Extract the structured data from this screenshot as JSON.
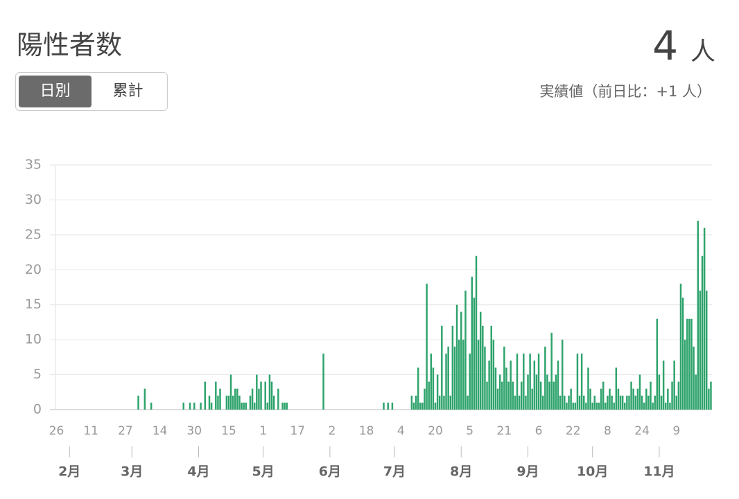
{
  "header": {
    "title": "陽性者数",
    "latest": 4,
    "unit": "人",
    "note": "実績値（前日比：+1 人）",
    "tabs": [
      "日別",
      "累計"
    ]
  },
  "chart_data": {
    "type": "bar",
    "color": "#2ea36c",
    "grid": true,
    "ylim": [
      0,
      35
    ],
    "yticks": [
      0,
      5,
      10,
      15,
      20,
      25,
      30,
      35
    ],
    "xticks": [
      {
        "value": 0,
        "label": "26"
      },
      {
        "value": 16,
        "label": "11"
      },
      {
        "value": 32,
        "label": "27"
      },
      {
        "value": 48,
        "label": "14"
      },
      {
        "value": 64,
        "label": "30"
      },
      {
        "value": 80,
        "label": "15"
      },
      {
        "value": 96,
        "label": "1"
      },
      {
        "value": 112,
        "label": "17"
      },
      {
        "value": 128,
        "label": "2"
      },
      {
        "value": 144,
        "label": "18"
      },
      {
        "value": 160,
        "label": "4"
      },
      {
        "value": 176,
        "label": "20"
      },
      {
        "value": 192,
        "label": "5"
      },
      {
        "value": 208,
        "label": "21"
      },
      {
        "value": 224,
        "label": "6"
      },
      {
        "value": 240,
        "label": "22"
      },
      {
        "value": 256,
        "label": "8"
      },
      {
        "value": 272,
        "label": "24"
      },
      {
        "value": 288,
        "label": "9"
      }
    ],
    "month_ticks": [
      {
        "value": 6,
        "label": "2月"
      },
      {
        "value": 35,
        "label": "3月"
      },
      {
        "value": 66,
        "label": "4月"
      },
      {
        "value": 96,
        "label": "5月"
      },
      {
        "value": 127,
        "label": "6月"
      },
      {
        "value": 157,
        "label": "7月"
      },
      {
        "value": 188,
        "label": "8月"
      },
      {
        "value": 219,
        "label": "9月"
      },
      {
        "value": 249,
        "label": "10月"
      },
      {
        "value": 280,
        "label": "11月"
      }
    ],
    "values": [
      0,
      0,
      0,
      0,
      0,
      0,
      0,
      0,
      0,
      0,
      0,
      0,
      0,
      0,
      0,
      0,
      0,
      0,
      0,
      0,
      0,
      0,
      0,
      0,
      0,
      0,
      0,
      0,
      0,
      0,
      0,
      0,
      0,
      0,
      0,
      0,
      0,
      0,
      2,
      0,
      0,
      3,
      0,
      0,
      1,
      0,
      0,
      0,
      0,
      0,
      0,
      0,
      0,
      0,
      0,
      0,
      0,
      0,
      0,
      1,
      0,
      0,
      1,
      0,
      1,
      0,
      0,
      1,
      0,
      4,
      0,
      2,
      1,
      0,
      4,
      2,
      3,
      0,
      0,
      2,
      2,
      5,
      2,
      3,
      3,
      2,
      1,
      1,
      1,
      0,
      2,
      3,
      1,
      5,
      3,
      4,
      0,
      4,
      1,
      5,
      4,
      2,
      0,
      3,
      0,
      1,
      1,
      1,
      0,
      0,
      0,
      0,
      0,
      0,
      0,
      0,
      0,
      0,
      0,
      0,
      0,
      0,
      0,
      0,
      8,
      0,
      0,
      0,
      0,
      0,
      0,
      0,
      0,
      0,
      0,
      0,
      0,
      0,
      0,
      0,
      0,
      0,
      0,
      0,
      0,
      0,
      0,
      0,
      0,
      0,
      0,
      0,
      1,
      0,
      1,
      0,
      1,
      0,
      0,
      0,
      0,
      0,
      0,
      0,
      0,
      2,
      1,
      2,
      6,
      1,
      1,
      3,
      18,
      4,
      8,
      6,
      1,
      5,
      2,
      12,
      2,
      8,
      9,
      2,
      12,
      9,
      15,
      10,
      14,
      10,
      17,
      2,
      8,
      19,
      16,
      22,
      10,
      14,
      12,
      9,
      4,
      7,
      12,
      10,
      6,
      3,
      5,
      4,
      9,
      6,
      4,
      7,
      4,
      2,
      8,
      2,
      4,
      8,
      2,
      5,
      8,
      3,
      7,
      5,
      8,
      4,
      2,
      9,
      5,
      4,
      11,
      4,
      5,
      7,
      2,
      10,
      2,
      1,
      2,
      3,
      1,
      1,
      8,
      2,
      8,
      2,
      1,
      6,
      3,
      1,
      2,
      1,
      1,
      3,
      4,
      1,
      2,
      3,
      2,
      1,
      6,
      3,
      2,
      2,
      1,
      2,
      2,
      4,
      3,
      2,
      3,
      5,
      2,
      1,
      3,
      2,
      4,
      1,
      2,
      13,
      5,
      2,
      7,
      1,
      3,
      1,
      4,
      7,
      2,
      4,
      18,
      16,
      10,
      13,
      13,
      13,
      9,
      5,
      27,
      17,
      22,
      26,
      17,
      3,
      4
    ]
  }
}
